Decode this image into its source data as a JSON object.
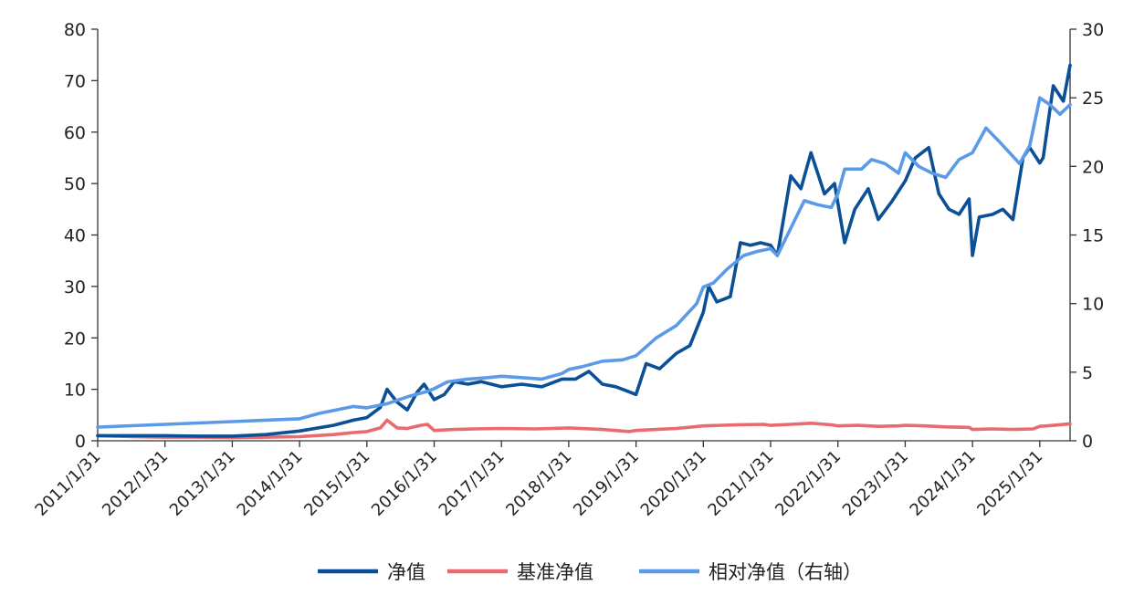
{
  "chart_data": {
    "type": "line",
    "title": "",
    "xlabel": "",
    "ylabel": "",
    "x_tick_labels": [
      "2011/1/31",
      "2012/1/31",
      "2013/1/31",
      "2014/1/31",
      "2015/1/31",
      "2016/1/31",
      "2017/1/31",
      "2018/1/31",
      "2019/1/31",
      "2020/1/31",
      "2021/1/31",
      "2022/1/31",
      "2023/1/31",
      "2024/1/31",
      "2025/1/31"
    ],
    "x_range": [
      2011.0,
      2025.45
    ],
    "y_left": {
      "range": [
        0,
        80
      ],
      "ticks": [
        "0",
        "10",
        "20",
        "30",
        "40",
        "50",
        "60",
        "70",
        "80"
      ]
    },
    "y_right": {
      "range": [
        0,
        30
      ],
      "ticks": [
        "0",
        "5",
        "10",
        "15",
        "20",
        "25",
        "30"
      ]
    },
    "grid": false,
    "legend_position": "bottom",
    "series": [
      {
        "name": "净值",
        "axis": "left",
        "color": "#0b4f96",
        "x": [
          2011.0,
          2011.5,
          2012.0,
          2012.5,
          2013.0,
          2013.5,
          2014.0,
          2014.5,
          2014.8,
          2015.0,
          2015.2,
          2015.3,
          2015.45,
          2015.6,
          2015.75,
          2015.85,
          2016.0,
          2016.15,
          2016.3,
          2016.5,
          2016.7,
          2017.0,
          2017.3,
          2017.6,
          2017.9,
          2018.1,
          2018.3,
          2018.5,
          2018.7,
          2018.9,
          2019.0,
          2019.15,
          2019.35,
          2019.6,
          2019.8,
          2020.0,
          2020.08,
          2020.2,
          2020.4,
          2020.55,
          2020.7,
          2020.85,
          2021.0,
          2021.1,
          2021.3,
          2021.45,
          2021.6,
          2021.8,
          2021.95,
          2022.1,
          2022.25,
          2022.45,
          2022.6,
          2022.8,
          2023.0,
          2023.15,
          2023.35,
          2023.5,
          2023.65,
          2023.8,
          2023.95,
          2024.0,
          2024.1,
          2024.3,
          2024.45,
          2024.6,
          2024.75,
          2024.85,
          2025.0,
          2025.05,
          2025.2,
          2025.35,
          2025.45
        ],
        "values": [
          1.0,
          1.0,
          1.0,
          0.9,
          0.9,
          1.2,
          1.9,
          3.0,
          4.0,
          4.5,
          6.5,
          10.0,
          7.5,
          6.0,
          9.5,
          11.0,
          8.0,
          9.0,
          11.5,
          11.0,
          11.5,
          10.5,
          11.0,
          10.5,
          12.0,
          12.0,
          13.5,
          11.0,
          10.5,
          9.5,
          9.0,
          15.0,
          14.0,
          17.0,
          18.5,
          25.0,
          30.0,
          27.0,
          28.0,
          38.5,
          38.0,
          38.5,
          38.0,
          36.0,
          51.5,
          49.0,
          56.0,
          48.0,
          50.0,
          38.5,
          45.0,
          49.0,
          43.0,
          46.5,
          50.5,
          55.0,
          57.0,
          48.0,
          45.0,
          44.0,
          47.0,
          36.0,
          43.5,
          44.0,
          45.0,
          43.0,
          55.0,
          57.0,
          54.0,
          55.0,
          69.0,
          66.0,
          73.0
        ]
      },
      {
        "name": "基准净值",
        "axis": "left",
        "color": "#e96b6f",
        "x": [
          2011.0,
          2011.5,
          2012.0,
          2012.5,
          2013.0,
          2013.5,
          2014.0,
          2014.5,
          2014.8,
          2015.0,
          2015.2,
          2015.3,
          2015.45,
          2015.6,
          2015.8,
          2015.9,
          2016.0,
          2016.3,
          2016.6,
          2017.0,
          2017.5,
          2018.0,
          2018.5,
          2018.9,
          2019.0,
          2019.3,
          2019.6,
          2020.0,
          2020.5,
          2020.9,
          2021.0,
          2021.3,
          2021.6,
          2021.9,
          2022.0,
          2022.3,
          2022.6,
          2022.9,
          2023.0,
          2023.3,
          2023.6,
          2023.95,
          2024.0,
          2024.3,
          2024.6,
          2024.9,
          2025.0,
          2025.2,
          2025.45
        ],
        "values": [
          1.0,
          0.8,
          0.7,
          0.7,
          0.6,
          0.7,
          0.8,
          1.2,
          1.6,
          1.8,
          2.5,
          4.0,
          2.5,
          2.4,
          3.0,
          3.2,
          2.0,
          2.2,
          2.3,
          2.4,
          2.3,
          2.5,
          2.2,
          1.8,
          2.0,
          2.2,
          2.4,
          2.9,
          3.1,
          3.2,
          3.0,
          3.2,
          3.4,
          3.1,
          2.9,
          3.0,
          2.8,
          2.9,
          3.0,
          2.9,
          2.7,
          2.6,
          2.2,
          2.3,
          2.2,
          2.3,
          2.8,
          3.0,
          3.3
        ]
      },
      {
        "name": "相对净值（右轴）",
        "axis": "right",
        "color": "#5b9ae6",
        "x": [
          2011.0,
          2011.5,
          2012.0,
          2012.5,
          2013.0,
          2013.5,
          2014.0,
          2014.3,
          2014.6,
          2014.8,
          2015.0,
          2015.3,
          2015.6,
          2015.9,
          2016.0,
          2016.2,
          2016.5,
          2016.8,
          2017.0,
          2017.3,
          2017.6,
          2017.9,
          2018.0,
          2018.2,
          2018.5,
          2018.8,
          2019.0,
          2019.3,
          2019.6,
          2019.9,
          2020.0,
          2020.15,
          2020.35,
          2020.6,
          2020.8,
          2021.0,
          2021.1,
          2021.3,
          2021.5,
          2021.7,
          2021.9,
          2022.0,
          2022.1,
          2022.35,
          2022.5,
          2022.7,
          2022.9,
          2023.0,
          2023.2,
          2023.4,
          2023.6,
          2023.8,
          2024.0,
          2024.2,
          2024.4,
          2024.55,
          2024.7,
          2024.85,
          2025.0,
          2025.15,
          2025.3,
          2025.45
        ],
        "values": [
          1.0,
          1.1,
          1.2,
          1.3,
          1.4,
          1.5,
          1.6,
          2.0,
          2.3,
          2.5,
          2.4,
          2.7,
          3.2,
          3.6,
          3.8,
          4.3,
          4.5,
          4.6,
          4.7,
          4.6,
          4.5,
          4.9,
          5.2,
          5.4,
          5.8,
          5.9,
          6.2,
          7.5,
          8.4,
          10.0,
          11.2,
          11.5,
          12.5,
          13.5,
          13.8,
          14.0,
          13.5,
          15.5,
          17.5,
          17.2,
          17.0,
          18.0,
          19.8,
          19.8,
          20.5,
          20.2,
          19.5,
          21.0,
          20.0,
          19.5,
          19.2,
          20.5,
          21.0,
          22.8,
          21.8,
          21.0,
          20.2,
          21.5,
          25.0,
          24.5,
          23.8,
          24.5
        ]
      }
    ]
  }
}
